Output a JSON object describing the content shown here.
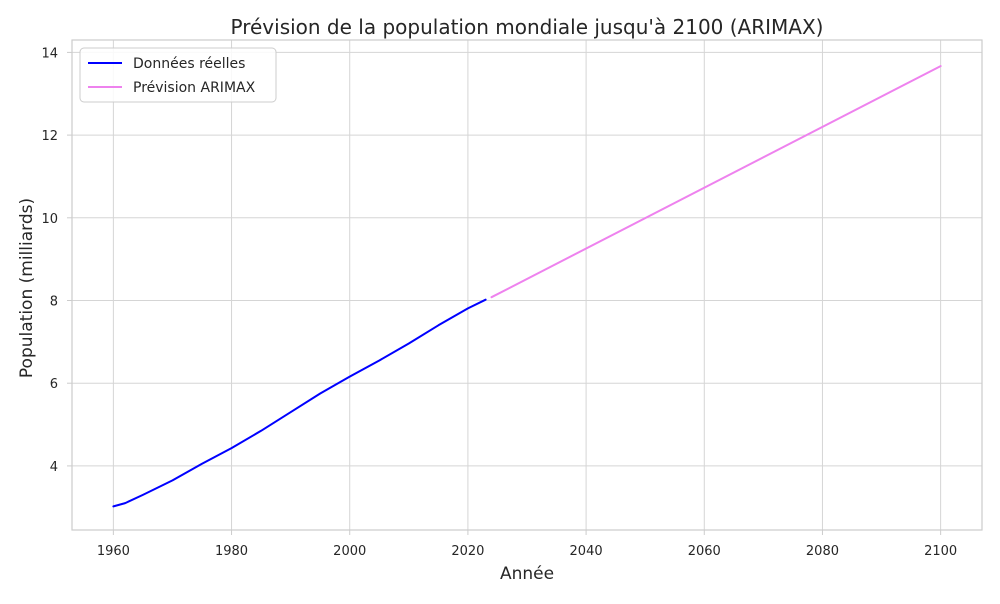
{
  "chart_data": {
    "type": "line",
    "title": "Prévision de la population mondiale jusqu'à 2100 (ARIMAX)",
    "xlabel": "Année",
    "ylabel": "Population (milliards)",
    "xlim": [
      1953,
      2107
    ],
    "ylim": [
      2.45,
      14.3
    ],
    "xticks": [
      1960,
      1980,
      2000,
      2020,
      2040,
      2060,
      2080,
      2100
    ],
    "yticks": [
      4,
      6,
      8,
      10,
      12,
      14
    ],
    "grid": true,
    "legend_position": "top-left",
    "series": [
      {
        "name": "Données réelles",
        "color": "#0000ff",
        "x": [
          1960,
          1962,
          1965,
          1970,
          1975,
          1980,
          1985,
          1990,
          1995,
          2000,
          2005,
          2010,
          2015,
          2020,
          2023
        ],
        "y": [
          3.02,
          3.1,
          3.3,
          3.65,
          4.05,
          4.43,
          4.85,
          5.3,
          5.75,
          6.16,
          6.55,
          6.96,
          7.4,
          7.81,
          8.02
        ]
      },
      {
        "name": "Prévision ARIMAX",
        "color": "#ee82ee",
        "x": [
          2024,
          2100
        ],
        "y": [
          8.08,
          13.67
        ]
      }
    ]
  }
}
